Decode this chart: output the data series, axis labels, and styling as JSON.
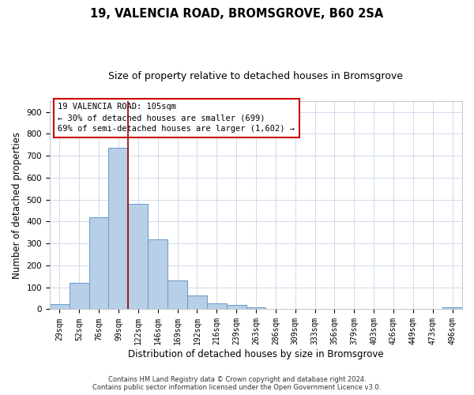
{
  "title": "19, VALENCIA ROAD, BROMSGROVE, B60 2SA",
  "subtitle": "Size of property relative to detached houses in Bromsgrove",
  "xlabel": "Distribution of detached houses by size in Bromsgrove",
  "ylabel": "Number of detached properties",
  "bin_labels": [
    "29sqm",
    "52sqm",
    "76sqm",
    "99sqm",
    "122sqm",
    "146sqm",
    "169sqm",
    "192sqm",
    "216sqm",
    "239sqm",
    "263sqm",
    "286sqm",
    "309sqm",
    "333sqm",
    "356sqm",
    "379sqm",
    "403sqm",
    "426sqm",
    "449sqm",
    "473sqm",
    "496sqm"
  ],
  "bin_counts": [
    22,
    122,
    420,
    735,
    480,
    318,
    132,
    64,
    28,
    20,
    10,
    0,
    0,
    0,
    0,
    0,
    0,
    0,
    0,
    0,
    8
  ],
  "bar_color": "#b8cfe8",
  "bar_edge_color": "#6699cc",
  "vline_x_index": 3.5,
  "vline_color": "#990000",
  "annotation_title": "19 VALENCIA ROAD: 105sqm",
  "annotation_line1": "← 30% of detached houses are smaller (699)",
  "annotation_line2": "69% of semi-detached houses are larger (1,602) →",
  "annotation_box_facecolor": "#ffffff",
  "annotation_box_edgecolor": "#cc0000",
  "ylim": [
    0,
    950
  ],
  "yticks": [
    0,
    100,
    200,
    300,
    400,
    500,
    600,
    700,
    800,
    900
  ],
  "footer1": "Contains HM Land Registry data © Crown copyright and database right 2024.",
  "footer2": "Contains public sector information licensed under the Open Government Licence v3.0.",
  "background_color": "#ffffff",
  "grid_color": "#c8d4e8",
  "title_fontsize": 10.5,
  "subtitle_fontsize": 9,
  "tick_fontsize": 7,
  "ylabel_fontsize": 8.5,
  "xlabel_fontsize": 8.5,
  "annot_fontsize": 7.5,
  "footer_fontsize": 6
}
